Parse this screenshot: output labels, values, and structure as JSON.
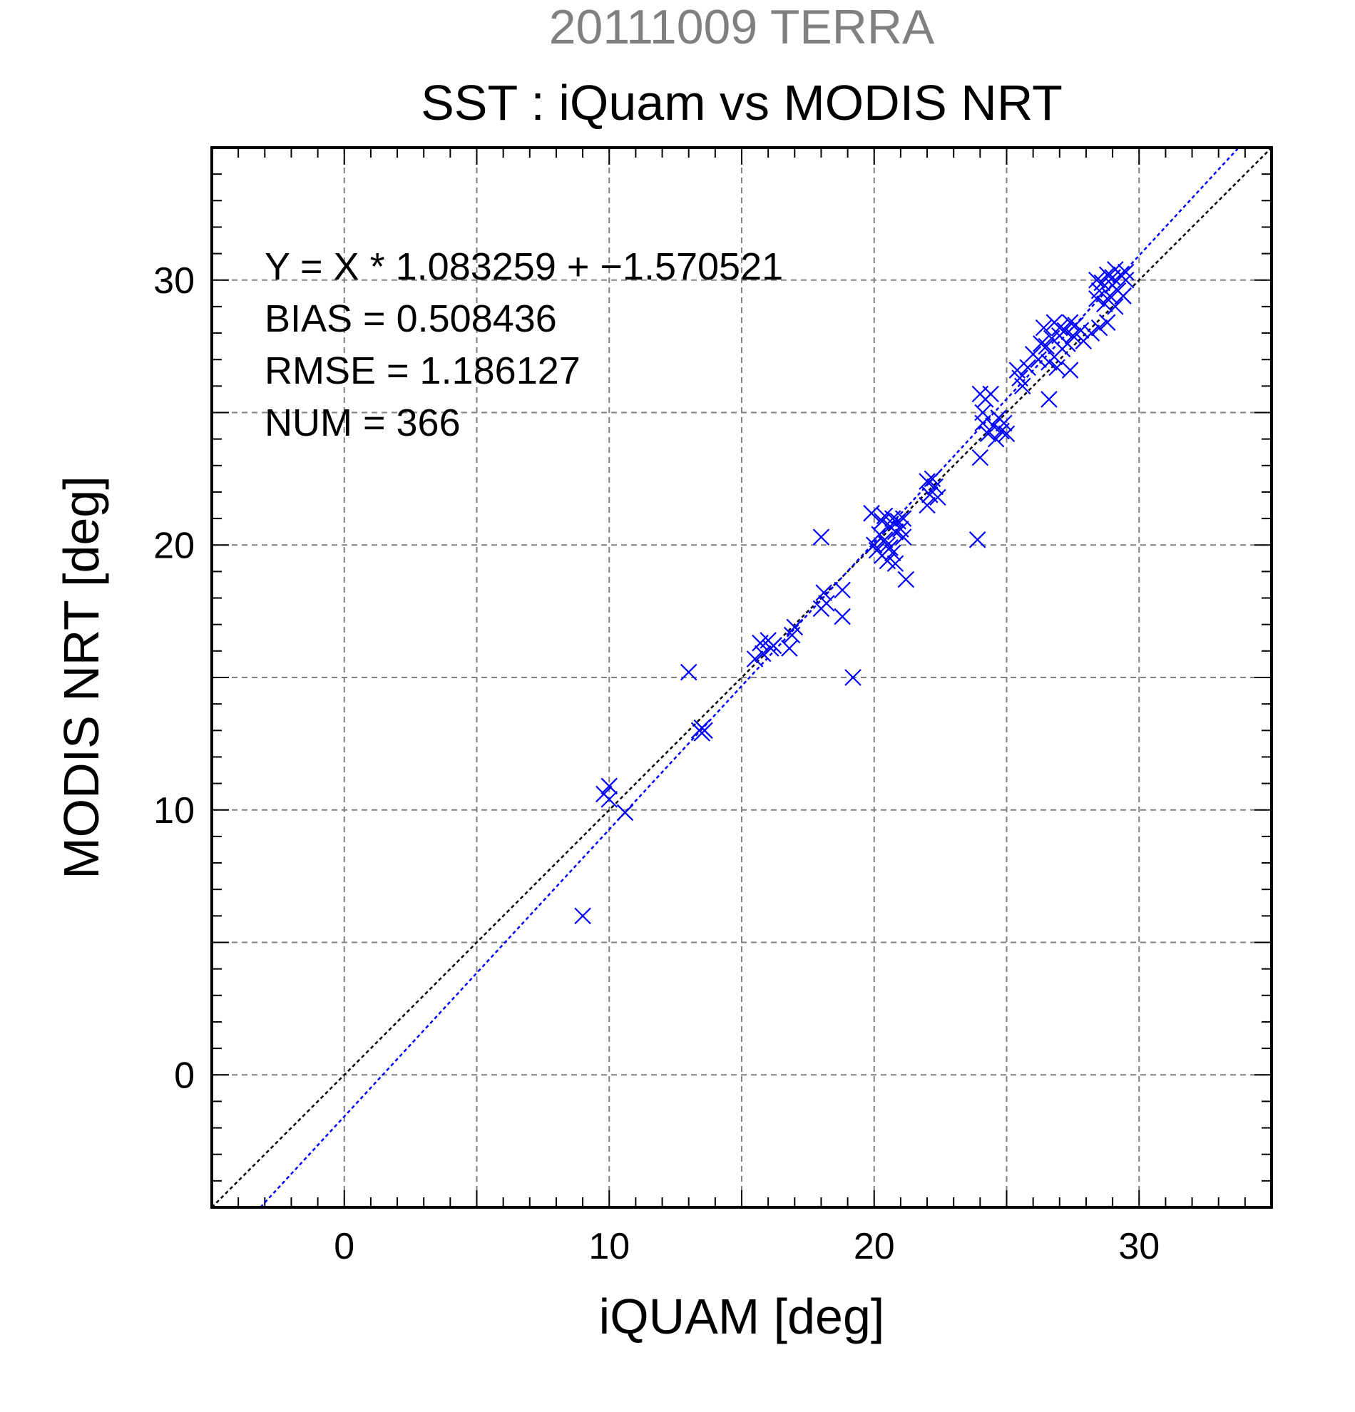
{
  "header": {
    "date_platform": "20111009 TERRA",
    "title": "SST : iQuam vs MODIS NRT"
  },
  "stats": {
    "equation": "Y = X * 1.083259 + −1.570521",
    "bias": "BIAS = 0.508436",
    "rmse": "RMSE = 1.186127",
    "num": "NUM = 366"
  },
  "colors": {
    "points": "#0000ff",
    "fit_line": "#0000ff",
    "one_to_one_line": "#000000",
    "grid": "#808080",
    "subtitle_text": "#808080"
  },
  "chart_data": {
    "type": "scatter",
    "title": "SST : iQuam vs MODIS NRT",
    "subtitle": "20111009 TERRA",
    "xlabel": "iQUAM [deg]",
    "ylabel": "MODIS NRT [deg]",
    "xlim": [
      -5,
      35
    ],
    "ylim": [
      -5,
      35
    ],
    "xticks": [
      0,
      10,
      20,
      30
    ],
    "yticks": [
      0,
      10,
      20,
      30
    ],
    "xtick_labels": [
      "0",
      "10",
      "20",
      "30"
    ],
    "ytick_labels": [
      "0",
      "10",
      "20",
      "30"
    ],
    "grid": true,
    "marker": "x",
    "lines": [
      {
        "kind": "one-to-one",
        "slope": 1.0,
        "intercept": 0.0
      },
      {
        "kind": "regression",
        "slope": 1.083259,
        "intercept": -1.570521
      }
    ],
    "points": [
      [
        9.0,
        6.0
      ],
      [
        9.8,
        10.6
      ],
      [
        10.0,
        10.9
      ],
      [
        10.0,
        10.4
      ],
      [
        10.6,
        9.9
      ],
      [
        13.0,
        15.2
      ],
      [
        13.4,
        13.0
      ],
      [
        13.5,
        13.1
      ],
      [
        13.5,
        12.9
      ],
      [
        13.6,
        13.0
      ],
      [
        15.5,
        15.7
      ],
      [
        15.7,
        16.3
      ],
      [
        15.8,
        15.9
      ],
      [
        16.0,
        16.4
      ],
      [
        16.1,
        16.1
      ],
      [
        16.2,
        16.2
      ],
      [
        16.8,
        16.1
      ],
      [
        16.9,
        16.6
      ],
      [
        17.0,
        16.9
      ],
      [
        18.0,
        20.3
      ],
      [
        18.0,
        17.6
      ],
      [
        18.1,
        18.2
      ],
      [
        18.2,
        17.8
      ],
      [
        18.8,
        18.3
      ],
      [
        18.8,
        17.3
      ],
      [
        19.2,
        15.0
      ],
      [
        19.9,
        21.2
      ],
      [
        20.0,
        20.0
      ],
      [
        20.1,
        19.8
      ],
      [
        20.2,
        20.4
      ],
      [
        20.3,
        20.9
      ],
      [
        20.3,
        19.6
      ],
      [
        20.4,
        20.2
      ],
      [
        20.4,
        21.1
      ],
      [
        20.5,
        20.0
      ],
      [
        20.5,
        19.4
      ],
      [
        20.6,
        20.7
      ],
      [
        20.6,
        19.9
      ],
      [
        20.7,
        19.7
      ],
      [
        20.7,
        21.0
      ],
      [
        20.8,
        20.5
      ],
      [
        20.8,
        19.3
      ],
      [
        20.9,
        20.9
      ],
      [
        21.0,
        20.6
      ],
      [
        21.1,
        21.0
      ],
      [
        21.1,
        20.3
      ],
      [
        21.2,
        18.7
      ],
      [
        22.0,
        22.4
      ],
      [
        22.0,
        21.5
      ],
      [
        22.1,
        21.9
      ],
      [
        22.2,
        22.5
      ],
      [
        22.3,
        22.2
      ],
      [
        22.4,
        21.8
      ],
      [
        23.9,
        20.2
      ],
      [
        24.0,
        25.7
      ],
      [
        24.0,
        23.3
      ],
      [
        24.1,
        25.0
      ],
      [
        24.1,
        24.6
      ],
      [
        24.2,
        25.5
      ],
      [
        24.3,
        24.2
      ],
      [
        24.4,
        25.7
      ],
      [
        24.5,
        24.5
      ],
      [
        24.6,
        24.0
      ],
      [
        24.7,
        24.8
      ],
      [
        24.8,
        24.3
      ],
      [
        24.9,
        24.6
      ],
      [
        25.0,
        24.2
      ],
      [
        25.4,
        26.6
      ],
      [
        25.5,
        26.3
      ],
      [
        25.6,
        26.0
      ],
      [
        25.8,
        26.7
      ],
      [
        26.0,
        27.2
      ],
      [
        26.2,
        27.0
      ],
      [
        26.3,
        27.6
      ],
      [
        26.4,
        28.2
      ],
      [
        26.5,
        27.5
      ],
      [
        26.6,
        25.5
      ],
      [
        26.6,
        26.9
      ],
      [
        26.7,
        27.8
      ],
      [
        26.8,
        28.4
      ],
      [
        26.8,
        27.1
      ],
      [
        26.9,
        26.7
      ],
      [
        27.0,
        27.9
      ],
      [
        27.0,
        28.2
      ],
      [
        27.1,
        27.4
      ],
      [
        27.2,
        28.1
      ],
      [
        27.3,
        27.6
      ],
      [
        27.4,
        28.4
      ],
      [
        27.4,
        26.6
      ],
      [
        27.5,
        27.9
      ],
      [
        27.6,
        28.3
      ],
      [
        27.8,
        28.1
      ],
      [
        27.9,
        27.7
      ],
      [
        28.2,
        28.0
      ],
      [
        28.4,
        29.3
      ],
      [
        28.4,
        30.0
      ],
      [
        28.5,
        29.6
      ],
      [
        28.5,
        28.2
      ],
      [
        28.6,
        29.9
      ],
      [
        28.7,
        29.1
      ],
      [
        28.8,
        30.2
      ],
      [
        28.8,
        28.4
      ],
      [
        28.9,
        29.4
      ],
      [
        29.0,
        29.8
      ],
      [
        29.0,
        30.1
      ],
      [
        29.1,
        29.0
      ],
      [
        29.1,
        30.4
      ],
      [
        29.2,
        29.6
      ],
      [
        29.3,
        30.2
      ],
      [
        29.4,
        29.4
      ],
      [
        29.5,
        30.0
      ],
      [
        29.5,
        30.3
      ]
    ]
  }
}
